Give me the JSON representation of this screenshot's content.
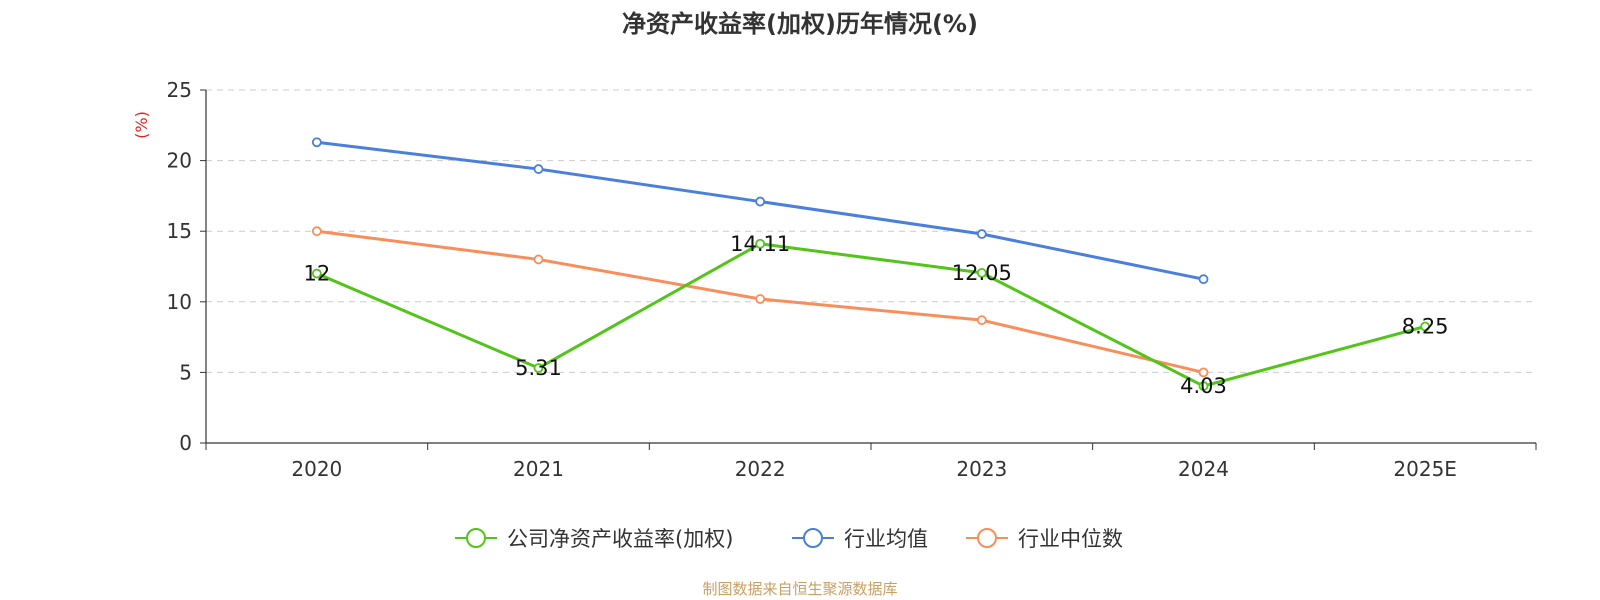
{
  "chart_data": {
    "type": "line",
    "title": "净资产收益率(加权)历年情况(%)",
    "ylabel": "(%)",
    "xlabel": "",
    "ylim": [
      0,
      25
    ],
    "yticks": [
      0,
      5,
      10,
      15,
      20,
      25
    ],
    "grid": true,
    "legend_position": "bottom",
    "categories": [
      "2020",
      "2021",
      "2022",
      "2023",
      "2024",
      "2025E"
    ],
    "series": [
      {
        "name": "公司净资产收益率(加权)",
        "color": "#52c41a",
        "values": [
          12,
          5.31,
          14.11,
          12.05,
          4.03,
          8.25
        ],
        "labels": [
          "12",
          "5.31",
          "14.11",
          "12.05",
          "4.03",
          "8.25"
        ]
      },
      {
        "name": "行业均值",
        "color": "#4a7fdc",
        "values": [
          21.3,
          19.4,
          17.1,
          14.8,
          11.6,
          null
        ]
      },
      {
        "name": "行业中位数",
        "color": "#f98e5b",
        "values": [
          15.0,
          13.0,
          10.2,
          8.7,
          5.0,
          null
        ]
      }
    ],
    "source": "制图数据来自恒生聚源数据库"
  }
}
